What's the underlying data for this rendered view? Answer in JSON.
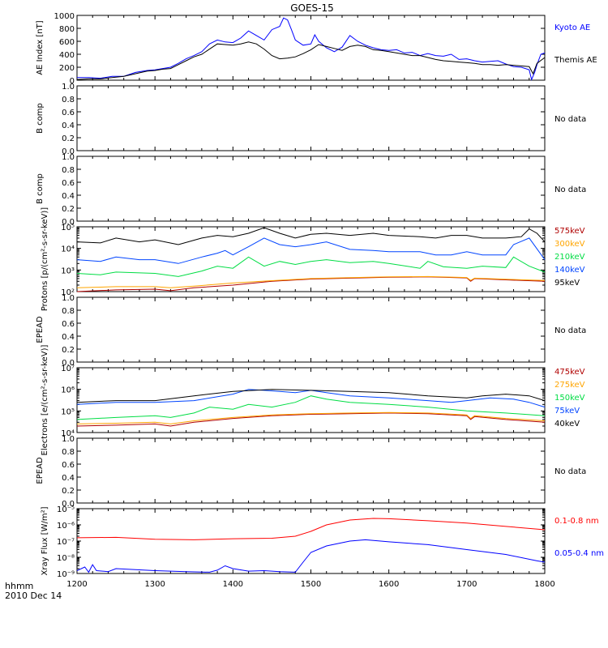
{
  "figure": {
    "title": "GOES-15",
    "time_label": "hhmm",
    "date_label": "2010 Dec 14",
    "x_ticks": [
      "1200",
      "1300",
      "1400",
      "1500",
      "1600",
      "1700",
      "1800"
    ]
  },
  "chart_data": [
    {
      "type": "line",
      "id": "ae",
      "ylabel": "AE Index [nT]",
      "ylim": [
        0,
        1000
      ],
      "y_ticks": [
        "0",
        "200",
        "400",
        "600",
        "800",
        "1000"
      ],
      "x_range": [
        1200,
        1800
      ],
      "series": [
        {
          "name": "Kyoto AE",
          "color": "#0000ff",
          "x": [
            1200,
            1215,
            1230,
            1245,
            1260,
            1275,
            1290,
            1300,
            1310,
            1320,
            1330,
            1340,
            1350,
            1360,
            1370,
            1380,
            1390,
            1400,
            1410,
            1420,
            1430,
            1440,
            1450,
            1460,
            1465,
            1470,
            1475,
            1480,
            1490,
            1500,
            1505,
            1510,
            1520,
            1530,
            1540,
            1550,
            1560,
            1570,
            1580,
            1590,
            1600,
            1610,
            1620,
            1630,
            1640,
            1650,
            1660,
            1670,
            1680,
            1690,
            1700,
            1710,
            1720,
            1730,
            1740,
            1750,
            1760,
            1770,
            1780,
            1783,
            1787,
            1790,
            1795,
            1800
          ],
          "y": [
            40,
            40,
            30,
            60,
            60,
            120,
            150,
            160,
            180,
            200,
            260,
            330,
            380,
            440,
            560,
            620,
            590,
            580,
            650,
            760,
            690,
            620,
            780,
            830,
            960,
            930,
            780,
            620,
            540,
            560,
            700,
            600,
            500,
            440,
            510,
            690,
            600,
            540,
            500,
            470,
            460,
            470,
            420,
            430,
            380,
            410,
            380,
            370,
            400,
            320,
            330,
            300,
            280,
            290,
            300,
            250,
            210,
            200,
            160,
            10,
            120,
            240,
            400,
            420
          ]
        },
        {
          "name": "Themis AE",
          "color": "#000000",
          "x": [
            1200,
            1215,
            1230,
            1245,
            1260,
            1275,
            1290,
            1300,
            1310,
            1320,
            1330,
            1340,
            1350,
            1360,
            1370,
            1380,
            1390,
            1400,
            1410,
            1420,
            1430,
            1440,
            1450,
            1460,
            1470,
            1480,
            1490,
            1500,
            1510,
            1520,
            1530,
            1540,
            1550,
            1560,
            1570,
            1580,
            1590,
            1600,
            1610,
            1620,
            1630,
            1640,
            1650,
            1660,
            1670,
            1680,
            1690,
            1700,
            1710,
            1720,
            1730,
            1740,
            1750,
            1760,
            1770,
            1780,
            1785,
            1790,
            1800
          ],
          "y": [
            10,
            20,
            20,
            40,
            60,
            100,
            140,
            150,
            170,
            180,
            240,
            300,
            360,
            400,
            480,
            560,
            550,
            540,
            560,
            590,
            560,
            480,
            380,
            330,
            340,
            360,
            410,
            470,
            550,
            520,
            490,
            460,
            520,
            540,
            520,
            470,
            460,
            440,
            420,
            400,
            380,
            380,
            350,
            320,
            300,
            290,
            280,
            270,
            260,
            240,
            240,
            230,
            240,
            230,
            220,
            210,
            100,
            260,
            350
          ]
        }
      ]
    },
    {
      "type": "line",
      "id": "b-comp-1",
      "ylabel": "B comp",
      "ylim": [
        0,
        1
      ],
      "y_ticks": [
        "0.0",
        "0.2",
        "0.4",
        "0.6",
        "0.8",
        "1.0"
      ],
      "note": "No data",
      "series": []
    },
    {
      "type": "line",
      "id": "b-comp-2",
      "ylabel": "B comp",
      "ylim": [
        0,
        1
      ],
      "y_ticks": [
        "0.0",
        "0.2",
        "0.4",
        "0.6",
        "0.8",
        "1.0"
      ],
      "note": "No data",
      "series": []
    },
    {
      "type": "line",
      "id": "protons",
      "ylabel": "Protons [p/(cm²-s-sr-keV)]",
      "yscale": "log",
      "ylim": [
        100,
        100000
      ],
      "y_ticks": [
        "10²",
        "10³",
        "10⁴",
        "10⁵"
      ],
      "series": [
        {
          "name": "575keV",
          "color": "#b00000",
          "x": [
            1200,
            1250,
            1300,
            1320,
            1350,
            1400,
            1450,
            1500,
            1550,
            1600,
            1650,
            1700,
            1705,
            1710,
            1750,
            1800
          ],
          "y": [
            100,
            120,
            130,
            110,
            150,
            200,
            300,
            380,
            420,
            460,
            480,
            430,
            300,
            400,
            350,
            300
          ]
        },
        {
          "name": "300keV",
          "color": "#ffa500",
          "x": [
            1200,
            1250,
            1300,
            1320,
            1350,
            1400,
            1450,
            1500,
            1550,
            1600,
            1650,
            1700,
            1705,
            1710,
            1750,
            1800
          ],
          "y": [
            150,
            170,
            170,
            150,
            180,
            250,
            320,
            400,
            440,
            480,
            500,
            450,
            330,
            420,
            370,
            330
          ]
        },
        {
          "name": "210keV",
          "color": "#00dd44",
          "x": [
            1200,
            1230,
            1250,
            1300,
            1330,
            1360,
            1380,
            1400,
            1420,
            1440,
            1460,
            1480,
            1500,
            1520,
            1550,
            1580,
            1600,
            1640,
            1650,
            1670,
            1700,
            1720,
            1750,
            1760,
            1780,
            1800
          ],
          "y": [
            700,
            600,
            800,
            700,
            500,
            900,
            1500,
            1200,
            4000,
            1500,
            2500,
            1800,
            2500,
            3000,
            2200,
            2500,
            2000,
            1200,
            2500,
            1400,
            1200,
            1500,
            1300,
            4000,
            1500,
            800
          ]
        },
        {
          "name": "140keV",
          "color": "#0044ff",
          "x": [
            1200,
            1230,
            1250,
            1280,
            1300,
            1330,
            1360,
            1380,
            1390,
            1400,
            1420,
            1440,
            1460,
            1480,
            1500,
            1520,
            1550,
            1580,
            1600,
            1640,
            1660,
            1680,
            1700,
            1720,
            1750,
            1760,
            1780,
            1800
          ],
          "y": [
            3000,
            2500,
            4000,
            3000,
            3000,
            2000,
            4000,
            6000,
            8000,
            5000,
            12000,
            30000,
            15000,
            12000,
            15000,
            20000,
            9000,
            8000,
            7000,
            7000,
            5000,
            5000,
            7000,
            5000,
            5000,
            15000,
            30000,
            3000
          ]
        },
        {
          "name": "95keV",
          "color": "#000000",
          "x": [
            1200,
            1230,
            1250,
            1280,
            1300,
            1330,
            1360,
            1380,
            1400,
            1420,
            1440,
            1460,
            1480,
            1500,
            1520,
            1550,
            1580,
            1600,
            1640,
            1660,
            1680,
            1700,
            1720,
            1750,
            1770,
            1780,
            1790,
            1800
          ],
          "y": [
            20000,
            18000,
            30000,
            20000,
            25000,
            15000,
            30000,
            40000,
            35000,
            50000,
            90000,
            50000,
            30000,
            45000,
            50000,
            40000,
            50000,
            40000,
            35000,
            30000,
            40000,
            40000,
            30000,
            30000,
            35000,
            80000,
            50000,
            20000
          ]
        }
      ]
    },
    {
      "type": "line",
      "id": "epead-1",
      "ylabel": "EPEAD",
      "ylim": [
        0,
        1
      ],
      "y_ticks": [
        "0.0",
        "0.2",
        "0.4",
        "0.6",
        "0.8",
        "1.0"
      ],
      "note": "No data",
      "series": []
    },
    {
      "type": "line",
      "id": "electrons",
      "ylabel": "Electrons [e/(cm²-s-sr-keV)]",
      "yscale": "log",
      "ylim": [
        10000,
        10000000
      ],
      "y_ticks": [
        "10⁴",
        "10⁵",
        "10⁶",
        "10⁷"
      ],
      "series": [
        {
          "name": "475keV",
          "color": "#b00000",
          "x": [
            1200,
            1250,
            1300,
            1320,
            1350,
            1400,
            1450,
            1500,
            1550,
            1600,
            1650,
            1700,
            1705,
            1710,
            1750,
            1800
          ],
          "y": [
            20000,
            22000,
            25000,
            20000,
            30000,
            45000,
            60000,
            70000,
            75000,
            80000,
            75000,
            60000,
            40000,
            55000,
            40000,
            30000
          ]
        },
        {
          "name": "275keV",
          "color": "#ffa500",
          "x": [
            1200,
            1250,
            1300,
            1320,
            1350,
            1400,
            1450,
            1500,
            1550,
            1600,
            1650,
            1700,
            1705,
            1710,
            1750,
            1800
          ],
          "y": [
            25000,
            27000,
            30000,
            25000,
            35000,
            50000,
            65000,
            75000,
            80000,
            85000,
            80000,
            65000,
            45000,
            60000,
            45000,
            35000
          ]
        },
        {
          "name": "150keV",
          "color": "#00dd44",
          "x": [
            1200,
            1250,
            1300,
            1320,
            1350,
            1370,
            1400,
            1420,
            1450,
            1480,
            1500,
            1520,
            1550,
            1600,
            1650,
            1700,
            1750,
            1800
          ],
          "y": [
            40000,
            50000,
            60000,
            50000,
            80000,
            150000,
            120000,
            200000,
            150000,
            250000,
            500000,
            350000,
            250000,
            200000,
            150000,
            100000,
            80000,
            60000
          ]
        },
        {
          "name": "75keV",
          "color": "#0044ff",
          "x": [
            1200,
            1250,
            1300,
            1350,
            1400,
            1420,
            1440,
            1460,
            1480,
            1500,
            1520,
            1550,
            1600,
            1650,
            1680,
            1700,
            1730,
            1760,
            1780,
            1800
          ],
          "y": [
            200000,
            250000,
            250000,
            300000,
            600000,
            1000000,
            900000,
            800000,
            700000,
            900000,
            700000,
            500000,
            400000,
            300000,
            250000,
            300000,
            400000,
            350000,
            250000,
            150000
          ]
        },
        {
          "name": "40keV",
          "color": "#000000",
          "x": [
            1200,
            1250,
            1300,
            1350,
            1400,
            1450,
            1500,
            1550,
            1600,
            1650,
            1700,
            1720,
            1750,
            1780,
            1800
          ],
          "y": [
            250000,
            300000,
            300000,
            500000,
            800000,
            1000000,
            900000,
            800000,
            700000,
            500000,
            400000,
            500000,
            600000,
            500000,
            300000
          ]
        }
      ]
    },
    {
      "type": "line",
      "id": "epead-2",
      "ylabel": "EPEAD",
      "ylim": [
        0,
        1
      ],
      "y_ticks": [
        "0.0",
        "0.2",
        "0.4",
        "0.6",
        "0.8",
        "1.0"
      ],
      "note": "No data",
      "series": []
    },
    {
      "type": "line",
      "id": "xray",
      "ylabel": "Xray Flux [W/m²]",
      "yscale": "log",
      "ylim": [
        1e-09,
        1e-05
      ],
      "y_ticks": [
        "10⁻⁹",
        "10⁻⁸",
        "10⁻⁷",
        "10⁻⁶",
        "10⁻⁵"
      ],
      "series": [
        {
          "name": "0.1-0.8 nm",
          "color": "#ff0000",
          "x": [
            1200,
            1250,
            1300,
            1350,
            1400,
            1450,
            1480,
            1500,
            1520,
            1550,
            1580,
            1600,
            1650,
            1700,
            1750,
            1800
          ],
          "y": [
            1.6e-07,
            1.7e-07,
            1.3e-07,
            1.2e-07,
            1.4e-07,
            1.5e-07,
            2e-07,
            4e-07,
            1e-06,
            2e-06,
            2.5e-06,
            2.4e-06,
            1.8e-06,
            1.3e-06,
            8e-07,
            5e-07
          ]
        },
        {
          "name": "0.05-0.4 nm",
          "color": "#0000ff",
          "x": [
            1200,
            1210,
            1215,
            1220,
            1225,
            1240,
            1250,
            1300,
            1340,
            1370,
            1380,
            1390,
            1400,
            1420,
            1440,
            1460,
            1480,
            1490,
            1500,
            1520,
            1550,
            1570,
            1600,
            1650,
            1700,
            1750,
            1790,
            1800
          ],
          "y": [
            1.5e-09,
            2.5e-09,
            1.2e-09,
            3.5e-09,
            1.5e-09,
            1.3e-09,
            2e-09,
            1.5e-09,
            1.3e-09,
            1.2e-09,
            1.6e-09,
            3e-09,
            2e-09,
            1.4e-09,
            1.5e-09,
            1.3e-09,
            1.2e-09,
            5e-09,
            2e-08,
            5e-08,
            1e-07,
            1.2e-07,
            9e-08,
            6e-08,
            3e-08,
            1.5e-08,
            6e-09,
            5e-09
          ]
        }
      ]
    }
  ]
}
